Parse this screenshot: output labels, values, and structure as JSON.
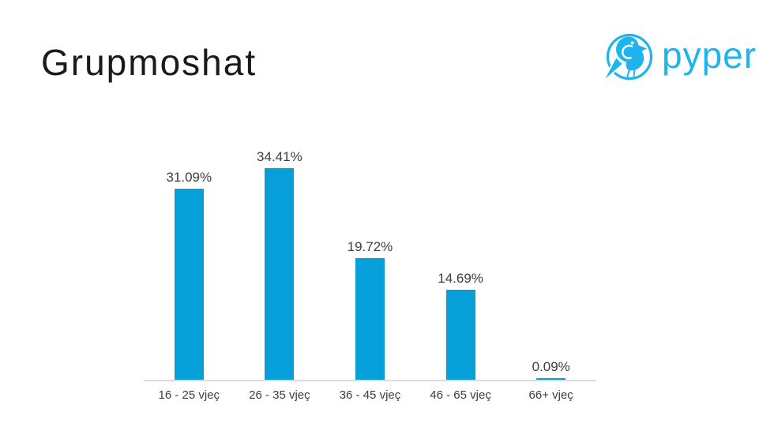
{
  "page": {
    "title": "Grupmoshat"
  },
  "logo": {
    "text": "pyper",
    "icon": "pyper-bird-logo-icon",
    "color": "#1fb4ee"
  },
  "chart_data": {
    "type": "bar",
    "title": "Grupmoshat",
    "categories": [
      "16 - 25 vjeç",
      "26 - 35 vjeç",
      "36 - 45 vjeç",
      "46 - 65 vjeç",
      "66+ vjeç"
    ],
    "values": [
      31.09,
      34.41,
      19.72,
      14.69,
      0.09
    ],
    "value_labels": [
      "31.09%",
      "34.41%",
      "19.72%",
      "14.69%",
      "0.09%"
    ],
    "xlabel": "",
    "ylabel": "",
    "ylim": [
      0,
      37.4
    ],
    "grid": false,
    "legend": false,
    "y_axis_visible": false,
    "data_labels_position": "above-bars",
    "bar_color": "#069fd9",
    "axis_line_color": "#dcdcdc",
    "label_color": "#3d3d3d"
  }
}
